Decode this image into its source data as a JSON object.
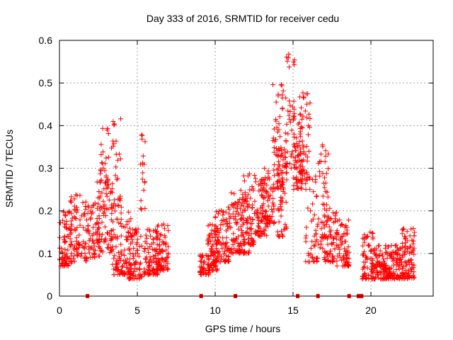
{
  "chart_data": {
    "type": "scatter",
    "title": "Day 333 of 2016, SRMTID for receiver cedu",
    "xlabel": "GPS time / hours",
    "ylabel": "SRMTID / TECUs",
    "xlim": [
      0,
      24
    ],
    "ylim": [
      0,
      0.6
    ],
    "x_ticks": [
      0,
      5,
      10,
      15,
      20
    ],
    "y_ticks": [
      0,
      0.1,
      0.2,
      0.3,
      0.4,
      0.5,
      0.6
    ],
    "x_tick_labels": [
      "0",
      "5",
      "10",
      "15",
      "20"
    ],
    "y_tick_labels": [
      "0",
      "0.1",
      "0.2",
      "0.3",
      "0.4",
      "0.5",
      "0.6"
    ],
    "grid": true,
    "marker": "+",
    "color": "#ff0000",
    "series": [
      {
        "name": "SRMTID",
        "clusters": [
          {
            "x": [
              0.0,
              0.8
            ],
            "y": [
              0.07,
              0.2
            ],
            "n": 70
          },
          {
            "x": [
              0.6,
              1.8
            ],
            "y": [
              0.08,
              0.24
            ],
            "n": 90
          },
          {
            "x": [
              1.8,
              2.6
            ],
            "y": [
              0.09,
              0.22
            ],
            "n": 60
          },
          {
            "x": [
              2.4,
              3.4
            ],
            "y": [
              0.1,
              0.3
            ],
            "n": 70
          },
          {
            "x": [
              2.6,
              3.3
            ],
            "y": [
              0.2,
              0.4
            ],
            "n": 30
          },
          {
            "x": [
              3.3,
              4.0
            ],
            "y": [
              0.2,
              0.42
            ],
            "n": 35
          },
          {
            "x": [
              3.4,
              4.6
            ],
            "y": [
              0.05,
              0.2
            ],
            "n": 100
          },
          {
            "x": [
              4.4,
              5.3
            ],
            "y": [
              0.04,
              0.16
            ],
            "n": 80
          },
          {
            "x": [
              5.2,
              5.5
            ],
            "y": [
              0.2,
              0.4
            ],
            "n": 18
          },
          {
            "x": [
              5.4,
              6.4
            ],
            "y": [
              0.05,
              0.16
            ],
            "n": 90
          },
          {
            "x": [
              6.2,
              7.0
            ],
            "y": [
              0.06,
              0.17
            ],
            "n": 80
          },
          {
            "x": [
              9.0,
              9.6
            ],
            "y": [
              0.05,
              0.1
            ],
            "n": 50
          },
          {
            "x": [
              9.5,
              10.2
            ],
            "y": [
              0.06,
              0.18
            ],
            "n": 70
          },
          {
            "x": [
              10.0,
              11.0
            ],
            "y": [
              0.08,
              0.21
            ],
            "n": 90
          },
          {
            "x": [
              11.0,
              12.2
            ],
            "y": [
              0.1,
              0.25
            ],
            "n": 110
          },
          {
            "x": [
              11.8,
              12.6
            ],
            "y": [
              0.12,
              0.3
            ],
            "n": 60
          },
          {
            "x": [
              12.5,
              13.4
            ],
            "y": [
              0.14,
              0.28
            ],
            "n": 70
          },
          {
            "x": [
              13.0,
              13.8
            ],
            "y": [
              0.17,
              0.3
            ],
            "n": 60
          },
          {
            "x": [
              13.7,
              14.4
            ],
            "y": [
              0.25,
              0.5
            ],
            "n": 70
          },
          {
            "x": [
              14.0,
              14.6
            ],
            "y": [
              0.14,
              0.35
            ],
            "n": 50
          },
          {
            "x": [
              14.5,
              15.1
            ],
            "y": [
              0.3,
              0.57
            ],
            "n": 45
          },
          {
            "x": [
              15.0,
              15.6
            ],
            "y": [
              0.25,
              0.43
            ],
            "n": 60
          },
          {
            "x": [
              15.4,
              16.1
            ],
            "y": [
              0.27,
              0.48
            ],
            "n": 55
          },
          {
            "x": [
              15.8,
              16.6
            ],
            "y": [
              0.08,
              0.3
            ],
            "n": 50
          },
          {
            "x": [
              16.6,
              17.3
            ],
            "y": [
              0.1,
              0.37
            ],
            "n": 50
          },
          {
            "x": [
              17.0,
              17.8
            ],
            "y": [
              0.08,
              0.22
            ],
            "n": 60
          },
          {
            "x": [
              17.8,
              18.6
            ],
            "y": [
              0.07,
              0.18
            ],
            "n": 70
          },
          {
            "x": [
              19.4,
              20.2
            ],
            "y": [
              0.04,
              0.15
            ],
            "n": 70
          },
          {
            "x": [
              20.2,
              21.2
            ],
            "y": [
              0.04,
              0.12
            ],
            "n": 110
          },
          {
            "x": [
              21.2,
              22.0
            ],
            "y": [
              0.04,
              0.12
            ],
            "n": 80
          },
          {
            "x": [
              22.0,
              22.8
            ],
            "y": [
              0.04,
              0.16
            ],
            "n": 90
          }
        ],
        "zero_markers_x": [
          1.8,
          9.1,
          11.3,
          15.3,
          16.6,
          18.6,
          19.2,
          19.3,
          19.4
        ]
      }
    ]
  }
}
